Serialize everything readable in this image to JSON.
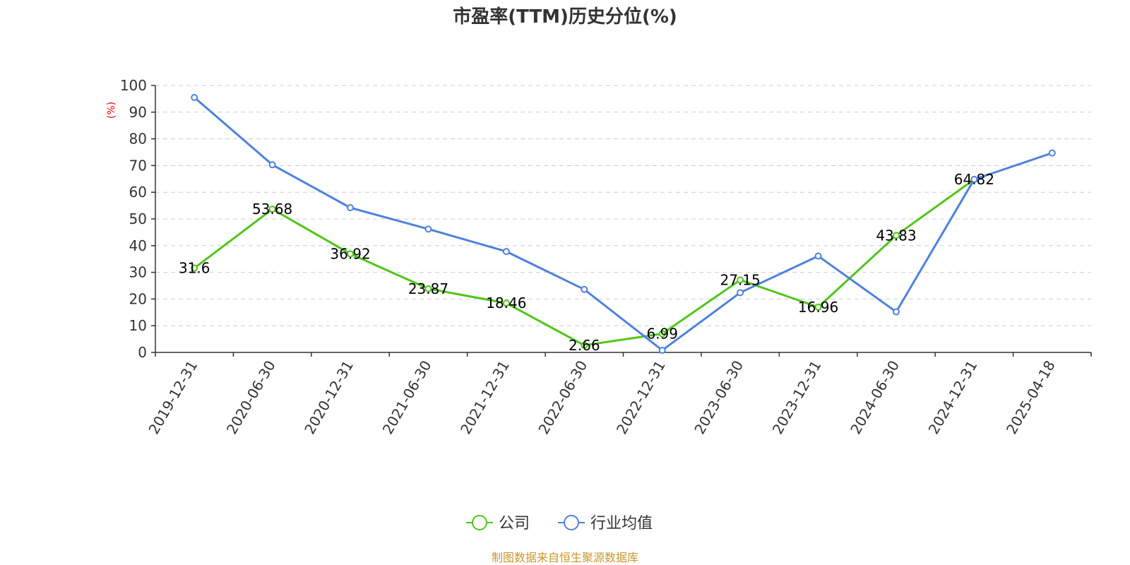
{
  "chart_data": {
    "type": "line",
    "title": "市盈率(TTM)历史分位(%)",
    "unit_label": "(%)",
    "categories": [
      "2019-12-31",
      "2020-06-30",
      "2020-12-31",
      "2021-06-30",
      "2021-12-31",
      "2022-06-30",
      "2022-12-31",
      "2023-06-30",
      "2023-12-31",
      "2024-06-30",
      "2024-12-31",
      "2025-04-18"
    ],
    "ylim": [
      0,
      100
    ],
    "yticks": [
      0,
      10,
      20,
      30,
      40,
      50,
      60,
      70,
      80,
      90,
      100
    ],
    "grid": true,
    "legend_position": "bottom-center",
    "series": [
      {
        "name": "公司",
        "color": "#52c41a",
        "show_labels": true,
        "values": [
          31.6,
          53.68,
          36.92,
          23.87,
          18.46,
          2.66,
          6.99,
          27.15,
          16.96,
          43.83,
          64.82,
          null
        ]
      },
      {
        "name": "行业均值",
        "color": "#4f81dd",
        "show_labels": false,
        "values": [
          95.5,
          70.3,
          54.2,
          46.2,
          37.8,
          23.6,
          0.8,
          22.4,
          36.1,
          15.2,
          64.8,
          74.7
        ]
      }
    ]
  },
  "source": "制图数据来自恒生聚源数据库"
}
